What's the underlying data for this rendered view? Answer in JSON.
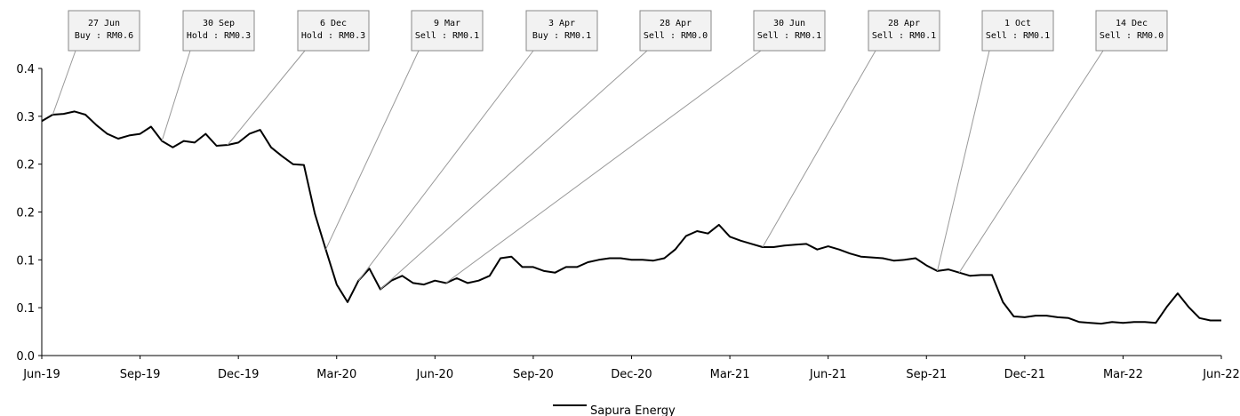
{
  "chart_data": {
    "type": "line",
    "categories": [
      "Jun-19",
      null,
      null,
      null,
      null,
      null,
      null,
      null,
      null,
      "Sep-19",
      null,
      null,
      null,
      null,
      null,
      null,
      null,
      null,
      "Dec-19",
      null,
      null,
      null,
      null,
      null,
      null,
      null,
      null,
      "Mar-20",
      null,
      null,
      null,
      null,
      null,
      null,
      null,
      null,
      "Jun-20",
      null,
      null,
      null,
      null,
      null,
      null,
      null,
      null,
      "Sep-20",
      null,
      null,
      null,
      null,
      null,
      null,
      null,
      null,
      "Dec-20",
      null,
      null,
      null,
      null,
      null,
      null,
      null,
      null,
      "Mar-21",
      null,
      null,
      null,
      null,
      null,
      null,
      null,
      null,
      "Jun-21",
      null,
      null,
      null,
      null,
      null,
      null,
      null,
      null,
      "Sep-21",
      null,
      null,
      null,
      null,
      null,
      null,
      null,
      null,
      "Dec-21",
      null,
      null,
      null,
      null,
      null,
      null,
      null,
      null,
      "Mar-22",
      null,
      null,
      null,
      null,
      null,
      null,
      null,
      null,
      "Jun-22"
    ],
    "series": [
      {
        "name": "Sapura Energy",
        "color": "#000000",
        "values": [
          0.294,
          0.302,
          0.303,
          0.306,
          0.302,
          0.289,
          0.278,
          0.272,
          0.276,
          0.278,
          0.287,
          0.269,
          0.261,
          0.269,
          0.267,
          0.278,
          0.263,
          0.264,
          0.267,
          0.278,
          0.283,
          0.261,
          0.25,
          0.24,
          0.239,
          0.178,
          0.133,
          0.089,
          0.067,
          0.094,
          0.109,
          0.083,
          0.094,
          0.1,
          0.091,
          0.089,
          0.094,
          0.091,
          0.097,
          0.091,
          0.094,
          0.1,
          0.122,
          0.124,
          0.111,
          0.111,
          0.106,
          0.104,
          0.111,
          0.111,
          0.117,
          0.12,
          0.122,
          0.122,
          0.12,
          0.12,
          0.119,
          0.122,
          0.133,
          0.15,
          0.156,
          0.153,
          0.164,
          0.149,
          0.144,
          0.14,
          0.136,
          0.136,
          0.138,
          0.139,
          0.14,
          0.133,
          0.137,
          0.133,
          0.128,
          0.124,
          0.123,
          0.122,
          0.119,
          0.12,
          0.122,
          0.113,
          0.106,
          0.108,
          0.104,
          0.1,
          0.101,
          0.101,
          0.067,
          0.049,
          0.048,
          0.05,
          0.05,
          0.048,
          0.047,
          0.042,
          0.041,
          0.04,
          0.042,
          0.041,
          0.042,
          0.042,
          0.041,
          0.061,
          0.078,
          0.061,
          0.047,
          0.044,
          0.044
        ]
      }
    ],
    "ylim": [
      0,
      0.36
    ],
    "yticks": [
      {
        "value": 0,
        "label": "0.0"
      },
      {
        "value": 0.06,
        "label": "0.1"
      },
      {
        "value": 0.12,
        "label": "0.1"
      },
      {
        "value": 0.18,
        "label": "0.2"
      },
      {
        "value": 0.24,
        "label": "0.2"
      },
      {
        "value": 0.3,
        "label": "0.3"
      },
      {
        "value": 0.36,
        "label": "0.4"
      }
    ],
    "annotations": [
      {
        "date": "27 Jun",
        "text": "Buy : RM0.6"
      },
      {
        "date": "30 Sep",
        "text": "Hold : RM0.3"
      },
      {
        "date": "6 Dec",
        "text": "Hold : RM0.3"
      },
      {
        "date": "9 Mar",
        "text": "Sell : RM0.1"
      },
      {
        "date": "3 Apr",
        "text": "Buy : RM0.1"
      },
      {
        "date": "28 Apr",
        "text": "Sell : RM0.0"
      },
      {
        "date": "30 Jun",
        "text": "Sell : RM0.1"
      },
      {
        "date": "28 Apr",
        "text": "Sell : RM0.1"
      },
      {
        "date": "1 Oct",
        "text": "Sell : RM0.1"
      },
      {
        "date": "14 Dec",
        "text": "Sell : RM0.0"
      }
    ],
    "legend": "bottom"
  }
}
